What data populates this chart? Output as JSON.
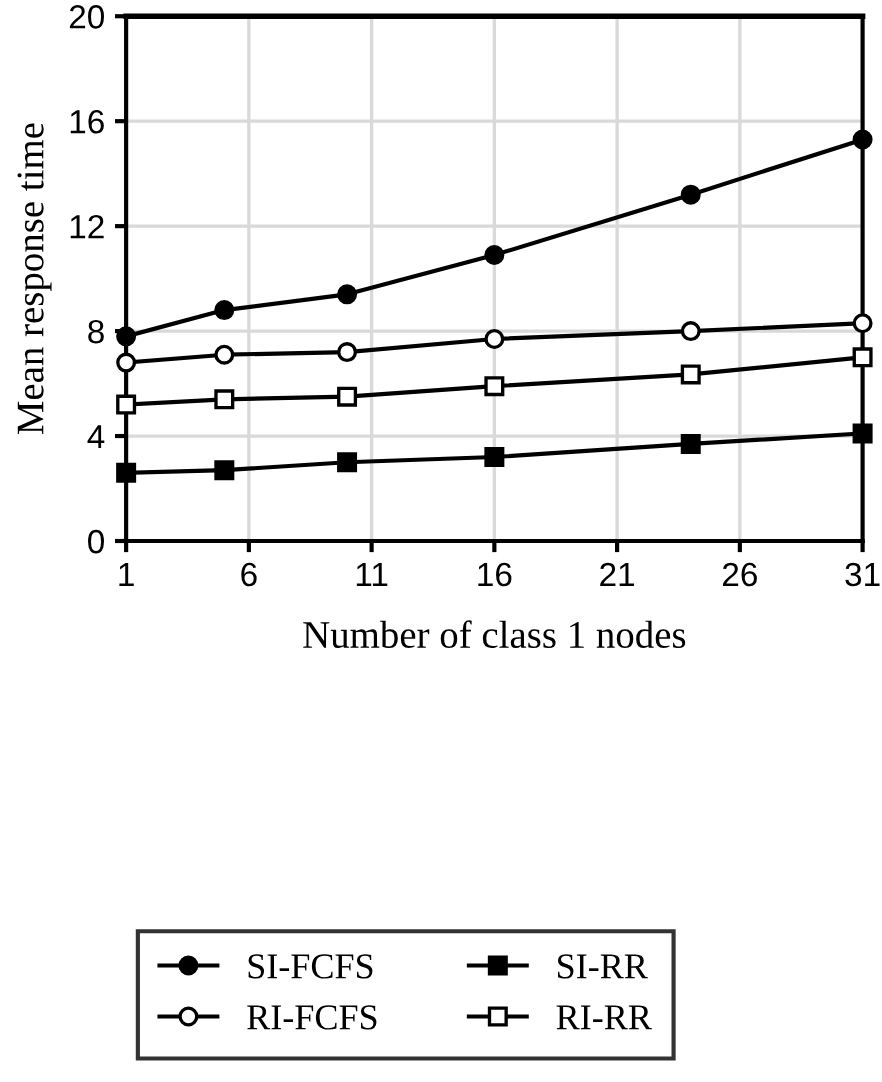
{
  "chart_data": {
    "type": "line",
    "xlabel": "Number of class 1 nodes",
    "ylabel": "Mean response time",
    "x": [
      1,
      5,
      10,
      16,
      24,
      31
    ],
    "series": [
      {
        "name": "SI-FCFS",
        "color": "#000000",
        "marker": "circle",
        "values": [
          7.8,
          8.8,
          9.4,
          10.9,
          13.2,
          15.3
        ]
      },
      {
        "name": "SI-RR",
        "color": "#000000",
        "marker": "square",
        "values": [
          2.6,
          2.7,
          3.0,
          3.2,
          3.7,
          4.1
        ]
      },
      {
        "name": "RI-FCFS",
        "color": "#000000",
        "marker": "circle",
        "values": [
          6.8,
          7.1,
          7.2,
          7.7,
          8.0,
          8.3
        ]
      },
      {
        "name": "RI-RR",
        "color": "#000000",
        "marker": "square",
        "values": [
          5.2,
          5.4,
          5.5,
          5.9,
          6.35,
          7.0
        ]
      }
    ],
    "xlim": [
      1,
      31
    ],
    "xticks": [
      1,
      6,
      11,
      16,
      21,
      26,
      31
    ],
    "ylim": [
      0,
      20
    ],
    "yticks": [
      0,
      4,
      8,
      12,
      16,
      20
    ],
    "grid": true,
    "legend": "bottom",
    "line_style": "solid"
  }
}
